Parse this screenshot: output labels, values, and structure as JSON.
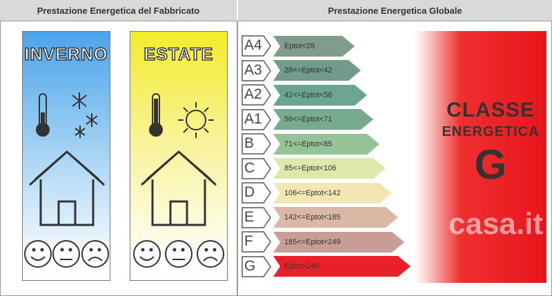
{
  "left_header": "Prestazione Energetica del Fabbricato",
  "right_header": "Prestazione Energetica Globale",
  "seasons": [
    {
      "title": "INVERNO",
      "color": "#5aa8e8",
      "icons": [
        "thermometer-low-icon",
        "snowflake-icon",
        "house-icon",
        "smiley-happy-icon",
        "smiley-neutral-icon",
        "smiley-sad-icon"
      ]
    },
    {
      "title": "ESTATE",
      "color": "#f5ee30",
      "icons": [
        "thermometer-high-icon",
        "sun-icon",
        "house-icon",
        "smiley-happy-icon",
        "smiley-neutral-icon",
        "smiley-sad-icon"
      ]
    }
  ],
  "classes": [
    {
      "label": "A4",
      "range": "Eptot<28",
      "color": "#7f9c8c"
    },
    {
      "label": "A3",
      "range": "28<=Eptot<42",
      "color": "#6f9b88"
    },
    {
      "label": "A2",
      "range": "42<=Eptot<56",
      "color": "#6aa68e"
    },
    {
      "label": "A1",
      "range": "56<=Eptot<71",
      "color": "#77ab90"
    },
    {
      "label": "B",
      "range": "71<=Eptot<85",
      "color": "#95c395"
    },
    {
      "label": "C",
      "range": "85<=Eptot<106",
      "color": "#dbeaa8"
    },
    {
      "label": "D",
      "range": "106<=Eptot<142",
      "color": "#f1e7b5"
    },
    {
      "label": "E",
      "range": "142<=Eptot<185",
      "color": "#dbb8a6"
    },
    {
      "label": "F",
      "range": "185<=Eptot<249",
      "color": "#c89d97"
    },
    {
      "label": "G",
      "range": "Eptot>249",
      "color": "#e8202a"
    }
  ],
  "result": {
    "line1": "CLASSE",
    "line2": "ENERGETICA",
    "grade": "G"
  },
  "watermark": "casa.it"
}
